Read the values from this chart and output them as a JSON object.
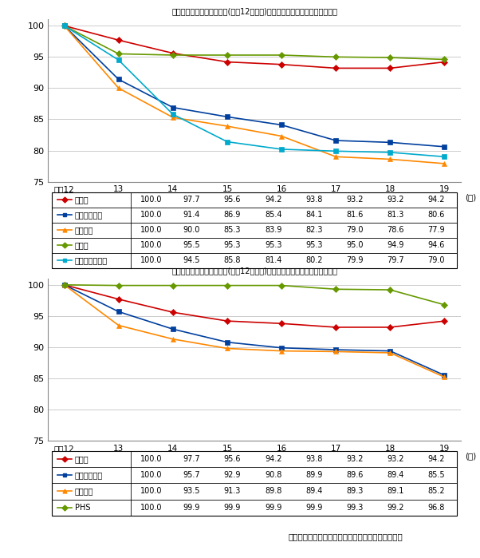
{
  "title1": "企業向けサービス価格指数(平成12年基準)における固定通信料金水準の推移",
  "title2": "企業向けサービス価格指数(平成12年基準)における移動通信料金水準の推移",
  "footer": "日本銀行「企業向けサービス価格指数」により作成",
  "x_labels": [
    "平成12",
    "13",
    "14",
    "15",
    "16",
    "17",
    "18",
    "19"
  ],
  "x_values": [
    0,
    1,
    2,
    3,
    4,
    5,
    6,
    7
  ],
  "ylim": [
    75,
    101
  ],
  "yticks": [
    75,
    80,
    85,
    90,
    95,
    100
  ],
  "chart1": {
    "series": [
      {
        "label": "総平均",
        "color": "#cc0000",
        "marker": "D",
        "values": [
          100.0,
          97.7,
          95.6,
          94.2,
          93.8,
          93.2,
          93.2,
          94.2
        ]
      },
      {
        "label": "固定電気通信",
        "color": "#003f9e",
        "marker": "s",
        "values": [
          100.0,
          91.4,
          86.9,
          85.4,
          84.1,
          81.6,
          81.3,
          80.6
        ]
      },
      {
        "label": "固定電話",
        "color": "#ff8800",
        "marker": "^",
        "values": [
          100.0,
          90.0,
          85.3,
          83.9,
          82.3,
          79.0,
          78.6,
          77.9
        ]
      },
      {
        "label": "専用線",
        "color": "#669900",
        "marker": "D",
        "values": [
          100.0,
          95.5,
          95.3,
          95.3,
          95.3,
          95.0,
          94.9,
          94.6
        ]
      },
      {
        "label": "固定データ伝送",
        "color": "#00aacc",
        "marker": "s",
        "values": [
          100.0,
          94.5,
          85.8,
          81.4,
          80.2,
          79.9,
          79.7,
          79.0
        ]
      }
    ],
    "table_rows": [
      [
        "総平均",
        "100.0",
        "97.7",
        "95.6",
        "94.2",
        "93.8",
        "93.2",
        "93.2",
        "94.2"
      ],
      [
        "固定電気通信",
        "100.0",
        "91.4",
        "86.9",
        "85.4",
        "84.1",
        "81.6",
        "81.3",
        "80.6"
      ],
      [
        "固定電話",
        "100.0",
        "90.0",
        "85.3",
        "83.9",
        "82.3",
        "79.0",
        "78.6",
        "77.9"
      ],
      [
        "専用線",
        "100.0",
        "95.5",
        "95.3",
        "95.3",
        "95.3",
        "95.0",
        "94.9",
        "94.6"
      ],
      [
        "固定データ伝送",
        "100.0",
        "94.5",
        "85.8",
        "81.4",
        "80.2",
        "79.9",
        "79.7",
        "79.0"
      ]
    ],
    "row_colors": [
      "#cc0000",
      "#003f9e",
      "#ff8800",
      "#669900",
      "#00aacc"
    ],
    "row_markers": [
      "D",
      "s",
      "^",
      "D",
      "s"
    ]
  },
  "chart2": {
    "series": [
      {
        "label": "総平均",
        "color": "#cc0000",
        "marker": "D",
        "values": [
          100.0,
          97.7,
          95.6,
          94.2,
          93.8,
          93.2,
          93.2,
          94.2
        ]
      },
      {
        "label": "移動電気通信",
        "color": "#003f9e",
        "marker": "s",
        "values": [
          100.0,
          95.7,
          92.9,
          90.8,
          89.9,
          89.6,
          89.4,
          85.5
        ]
      },
      {
        "label": "携帯電話",
        "color": "#ff8800",
        "marker": "^",
        "values": [
          100.0,
          93.5,
          91.3,
          89.8,
          89.4,
          89.3,
          89.1,
          85.2
        ]
      },
      {
        "label": "PHS",
        "color": "#669900",
        "marker": "D",
        "values": [
          100.0,
          99.9,
          99.9,
          99.9,
          99.9,
          99.3,
          99.2,
          96.8
        ]
      }
    ],
    "table_rows": [
      [
        "総平均",
        "100.0",
        "97.7",
        "95.6",
        "94.2",
        "93.8",
        "93.2",
        "93.2",
        "94.2"
      ],
      [
        "移動電気通信",
        "100.0",
        "95.7",
        "92.9",
        "90.8",
        "89.9",
        "89.6",
        "89.4",
        "85.5"
      ],
      [
        "携帯電話",
        "100.0",
        "93.5",
        "91.3",
        "89.8",
        "89.4",
        "89.3",
        "89.1",
        "85.2"
      ],
      [
        "PHS",
        "100.0",
        "99.9",
        "99.9",
        "99.9",
        "99.9",
        "99.3",
        "99.2",
        "96.8"
      ]
    ],
    "row_colors": [
      "#cc0000",
      "#003f9e",
      "#ff8800",
      "#669900"
    ],
    "row_markers": [
      "D",
      "s",
      "^",
      "D"
    ]
  }
}
